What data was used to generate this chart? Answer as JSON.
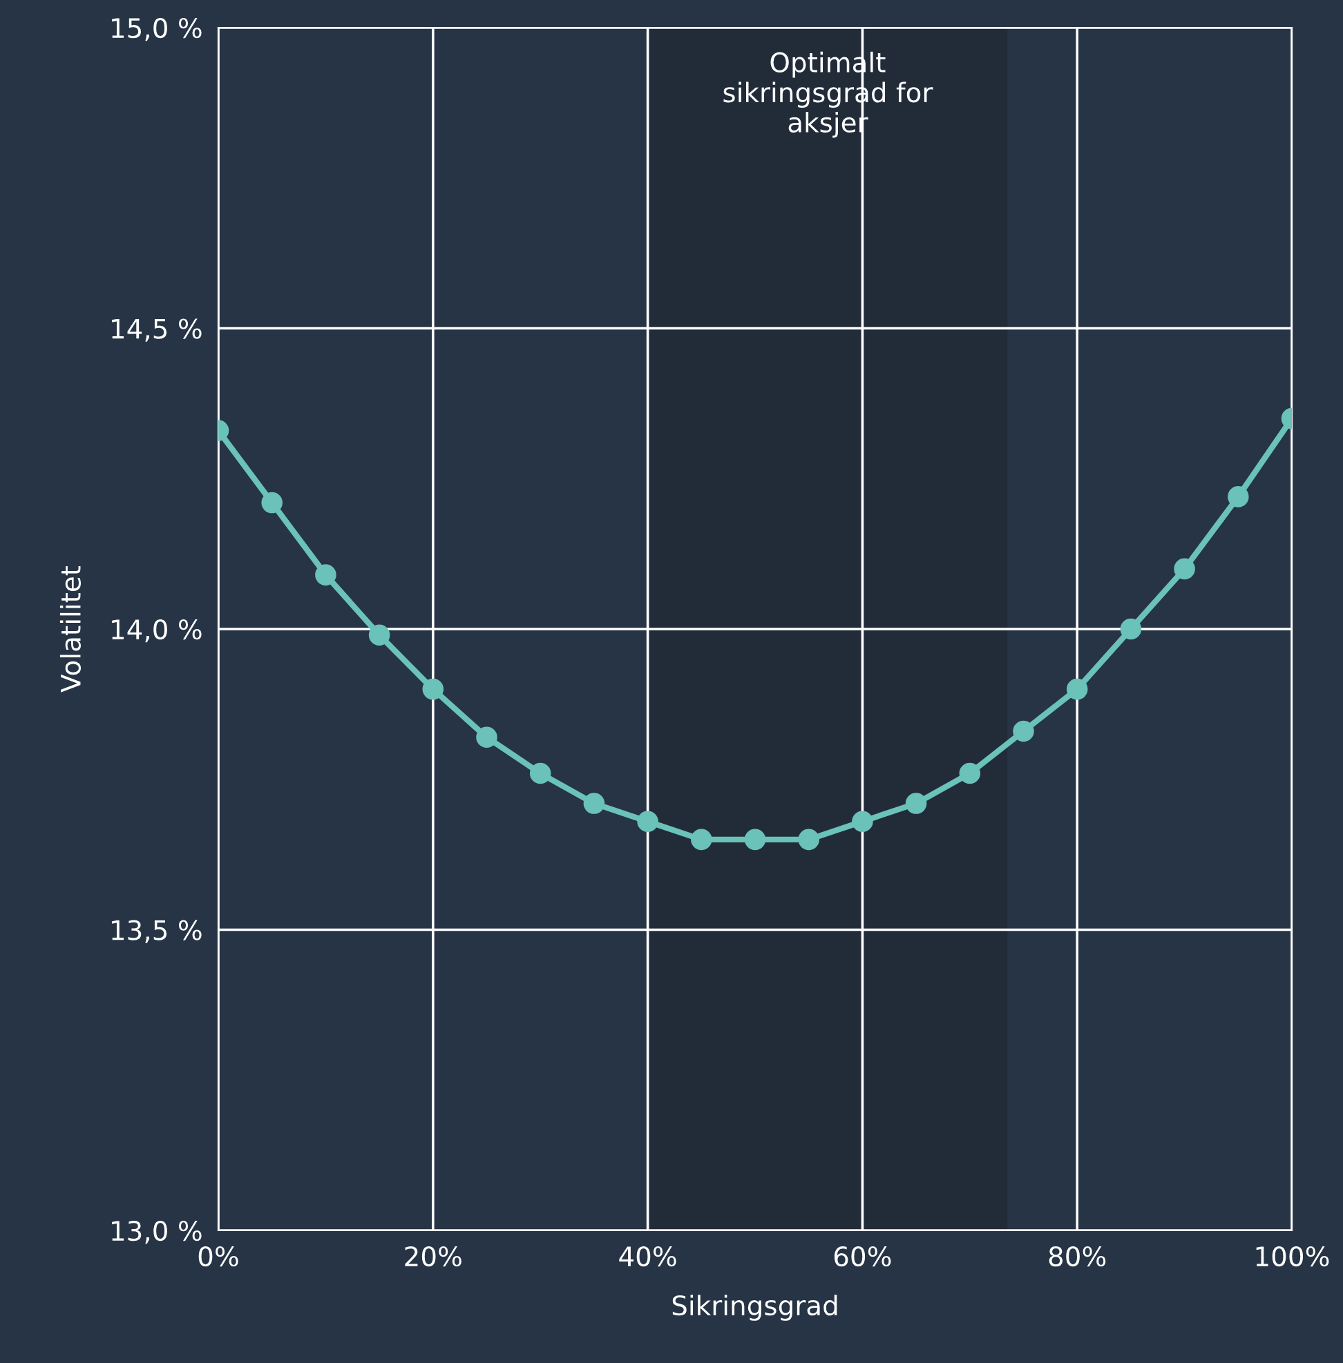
{
  "chart_data": {
    "type": "line",
    "xlabel": "Sikringsgrad",
    "ylabel": "Volatilitet",
    "x": [
      0,
      5,
      10,
      15,
      20,
      25,
      30,
      35,
      40,
      45,
      50,
      55,
      60,
      65,
      70,
      75,
      80,
      85,
      90,
      95,
      100
    ],
    "series": [
      {
        "color": "#6ac2b9",
        "values": [
          14.33,
          14.21,
          14.09,
          13.99,
          13.9,
          13.82,
          13.76,
          13.71,
          13.68,
          13.65,
          13.65,
          13.65,
          13.68,
          13.71,
          13.76,
          13.83,
          13.9,
          14.0,
          14.1,
          14.22,
          14.35
        ]
      }
    ],
    "xlim": [
      0,
      100
    ],
    "ylim": [
      13.0,
      15.0
    ],
    "xticks": [
      {
        "value": 0,
        "label": "0%"
      },
      {
        "value": 20,
        "label": "20%"
      },
      {
        "value": 40,
        "label": "40%"
      },
      {
        "value": 60,
        "label": "60%"
      },
      {
        "value": 80,
        "label": "80%"
      },
      {
        "value": 100,
        "label": "100%"
      }
    ],
    "yticks": [
      {
        "value": 13.0,
        "label": "13,0 %"
      },
      {
        "value": 13.5,
        "label": "13,5 %"
      },
      {
        "value": 14.0,
        "label": "14,0 %"
      },
      {
        "value": 14.5,
        "label": "14,5 %"
      },
      {
        "value": 15.0,
        "label": "15,0 %"
      }
    ],
    "bands": [
      {
        "axis": "x",
        "from": 40,
        "to": 73.5,
        "label": "Optimalt\nsikringsgrad for\naksjer",
        "color": "#222c39"
      }
    ],
    "grid": true,
    "marker": "circle",
    "line_style": "solid"
  }
}
